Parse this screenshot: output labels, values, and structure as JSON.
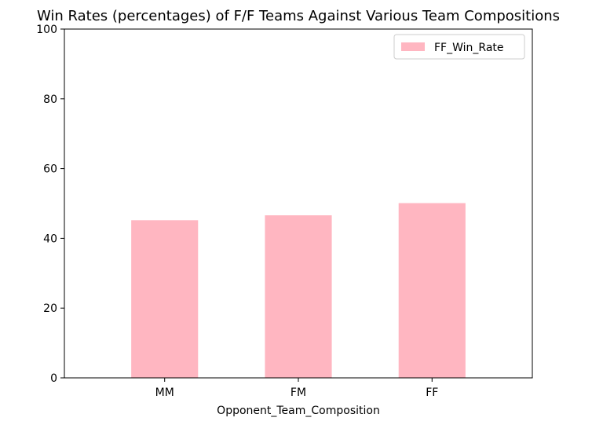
{
  "chart_data": {
    "type": "bar",
    "title": "Win Rates (percentages) of F/F Teams Against Various Team Compositions",
    "xlabel": "Opponent_Team_Composition",
    "ylabel": "",
    "categories": [
      "MM",
      "FM",
      "FF"
    ],
    "series": [
      {
        "name": "FF_Win_Rate",
        "values": [
          45.2,
          46.6,
          50.1
        ],
        "color": "#ffb6c1"
      }
    ],
    "ylim": [
      0,
      100
    ],
    "yticks": [
      0,
      20,
      40,
      60,
      80,
      100
    ],
    "grid": false,
    "legend_position": "top-right"
  }
}
